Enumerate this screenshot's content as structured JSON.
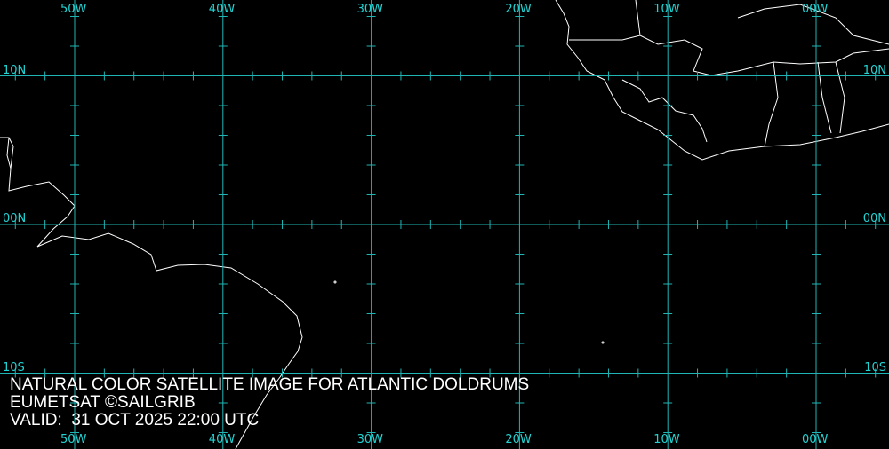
{
  "map": {
    "longitudes": [
      {
        "value": 50,
        "label": "50W"
      },
      {
        "value": 40,
        "label": "40W"
      },
      {
        "value": 30,
        "label": "30W"
      },
      {
        "value": 20,
        "label": "20W"
      },
      {
        "value": 10,
        "label": "10W"
      },
      {
        "value": 0,
        "label": "00W"
      }
    ],
    "latitudes": [
      {
        "value": 10,
        "label": "10N"
      },
      {
        "value": 0,
        "label": "00N"
      },
      {
        "value": -10,
        "label": "10S"
      }
    ],
    "tick_interval_deg": 2,
    "grid_color": "#1fb5b5",
    "label_color": "#22d3d3",
    "coastline_color": "#ffffff"
  },
  "caption": {
    "line1": "NATURAL COLOR SATELLITE IMAGE FOR ATLANTIC DOLDRUMS",
    "line2": "EUMETSAT ©SAILGRIB",
    "line3": "VALID:  31 OCT 2025 22:00 UTC"
  }
}
